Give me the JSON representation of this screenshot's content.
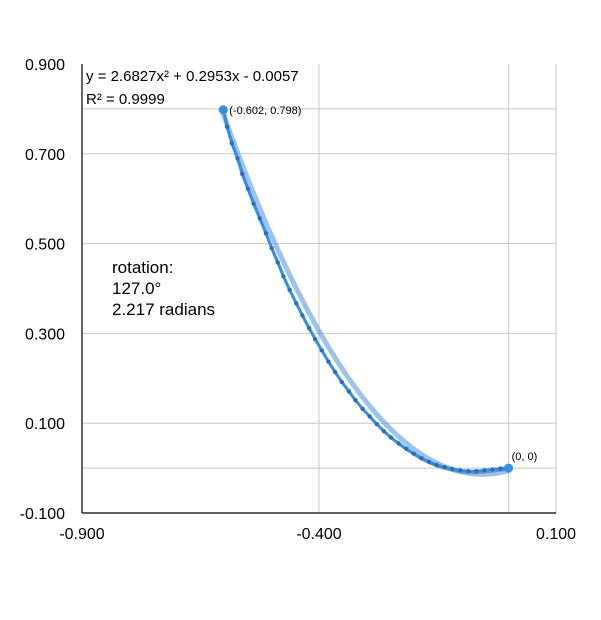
{
  "chart_data": {
    "type": "scatter",
    "title": "",
    "xlabel": "",
    "ylabel": "",
    "xlim": [
      -0.9,
      0.1
    ],
    "ylim": [
      -0.1,
      0.9
    ],
    "grid": true,
    "x_ticks": [
      "-0.900",
      "-0.400",
      "0.100"
    ],
    "y_ticks": [
      "0.900",
      "0.700",
      "0.500",
      "0.300",
      "0.100",
      "-0.100"
    ],
    "x_gridlines": [
      -0.4,
      0.0
    ],
    "y_gridlines": [
      0.8,
      0.7,
      0.5,
      0.3,
      0.1,
      0.0
    ],
    "trendline": {
      "equation": "y = 2.6827x² + 0.2953x - 0.0057",
      "r_squared": "R² = 0.9999",
      "coefficients": [
        2.6827,
        0.2953,
        -0.0057
      ],
      "color": "#4a90e2"
    },
    "series": [
      {
        "color": "#2f91e8",
        "points": [
          [
            -0.602,
            0.798
          ],
          [
            -0.594,
            0.76
          ],
          [
            -0.584,
            0.724
          ],
          [
            -0.572,
            0.69
          ],
          [
            -0.562,
            0.655
          ],
          [
            -0.55,
            0.622
          ],
          [
            -0.538,
            0.589
          ],
          [
            -0.525,
            0.556
          ],
          [
            -0.512,
            0.523
          ],
          [
            -0.5,
            0.49
          ],
          [
            -0.487,
            0.458
          ],
          [
            -0.475,
            0.427
          ],
          [
            -0.462,
            0.397
          ],
          [
            -0.448,
            0.367
          ],
          [
            -0.435,
            0.34
          ],
          [
            -0.421,
            0.312
          ],
          [
            -0.408,
            0.287
          ],
          [
            -0.394,
            0.262
          ],
          [
            -0.38,
            0.237
          ],
          [
            -0.366,
            0.214
          ],
          [
            -0.352,
            0.192
          ],
          [
            -0.337,
            0.171
          ],
          [
            -0.323,
            0.151
          ],
          [
            -0.308,
            0.132
          ],
          [
            -0.293,
            0.115
          ],
          [
            -0.278,
            0.098
          ],
          [
            -0.263,
            0.082
          ],
          [
            -0.248,
            0.068
          ],
          [
            -0.232,
            0.055
          ],
          [
            -0.216,
            0.043
          ],
          [
            -0.2,
            0.032
          ],
          [
            -0.184,
            0.022
          ],
          [
            -0.168,
            0.014
          ],
          [
            -0.152,
            0.007
          ],
          [
            -0.135,
            0.002
          ],
          [
            -0.119,
            -0.002
          ],
          [
            -0.102,
            -0.005
          ],
          [
            -0.085,
            -0.007
          ],
          [
            -0.068,
            -0.007
          ],
          [
            -0.051,
            -0.005
          ],
          [
            -0.034,
            -0.003
          ],
          [
            -0.017,
            -0.001
          ],
          [
            0.0,
            0.0
          ]
        ]
      }
    ],
    "annotations": [
      {
        "label": "(-0.602, 0.798)",
        "x": -0.602,
        "y": 0.798
      },
      {
        "label": "(0, 0)",
        "x": 0.0,
        "y": 0.0
      }
    ],
    "rotation_note": [
      "rotation:",
      "127.0°",
      "2.217 radians"
    ]
  }
}
